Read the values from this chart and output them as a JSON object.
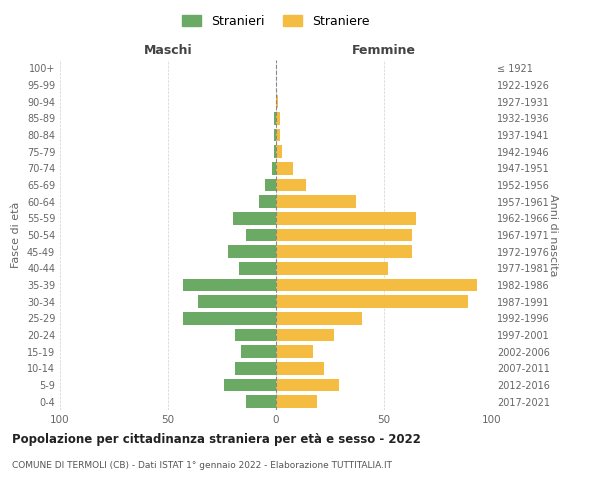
{
  "age_groups": [
    "0-4",
    "5-9",
    "10-14",
    "15-19",
    "20-24",
    "25-29",
    "30-34",
    "35-39",
    "40-44",
    "45-49",
    "50-54",
    "55-59",
    "60-64",
    "65-69",
    "70-74",
    "75-79",
    "80-84",
    "85-89",
    "90-94",
    "95-99",
    "100+"
  ],
  "birth_years": [
    "2017-2021",
    "2012-2016",
    "2007-2011",
    "2002-2006",
    "1997-2001",
    "1992-1996",
    "1987-1991",
    "1982-1986",
    "1977-1981",
    "1972-1976",
    "1967-1971",
    "1962-1966",
    "1957-1961",
    "1952-1956",
    "1947-1951",
    "1942-1946",
    "1937-1941",
    "1932-1936",
    "1927-1931",
    "1922-1926",
    "≤ 1921"
  ],
  "maschi": [
    14,
    24,
    19,
    16,
    19,
    43,
    36,
    43,
    17,
    22,
    14,
    20,
    8,
    5,
    2,
    1,
    1,
    1,
    0,
    0,
    0
  ],
  "femmine": [
    19,
    29,
    22,
    17,
    27,
    40,
    89,
    93,
    52,
    63,
    63,
    65,
    37,
    14,
    8,
    3,
    2,
    2,
    1,
    0,
    0
  ],
  "maschi_color": "#6aaa64",
  "femmine_color": "#f5bc42",
  "background_color": "#ffffff",
  "grid_color": "#cccccc",
  "title": "Popolazione per cittadinanza straniera per età e sesso - 2022",
  "subtitle": "COMUNE DI TERMOLI (CB) - Dati ISTAT 1° gennaio 2022 - Elaborazione TUTTITALIA.IT",
  "xlabel_left": "Maschi",
  "xlabel_right": "Femmine",
  "ylabel_left": "Fasce di età",
  "ylabel_right": "Anni di nascita",
  "xlim": 100,
  "legend_stranieri": "Stranieri",
  "legend_straniere": "Straniere"
}
